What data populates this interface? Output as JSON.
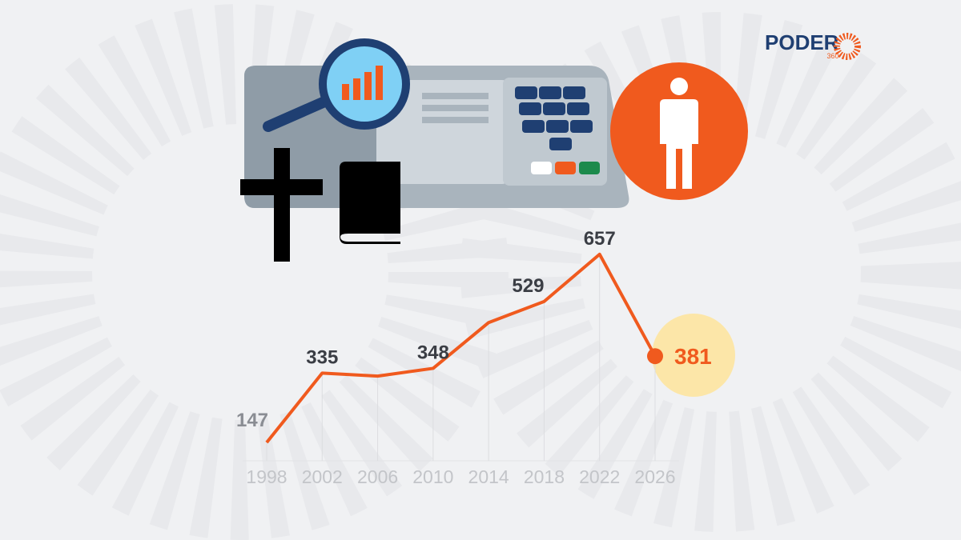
{
  "logo": {
    "name": "PODER",
    "sub": "360"
  },
  "chart_data": {
    "type": "line",
    "x": [
      1998,
      2002,
      2006,
      2010,
      2014,
      2018,
      2022,
      2026
    ],
    "values": [
      147,
      335,
      327,
      348,
      472,
      529,
      657,
      381
    ],
    "value_labels": [
      "147",
      "335",
      null,
      "348",
      null,
      "529",
      "657",
      "381"
    ],
    "color": "#f05a1e",
    "xlim": [
      1998,
      2026
    ],
    "xticks": [
      1998,
      2002,
      2006,
      2010,
      2014,
      2018,
      2022,
      2026
    ],
    "ylim": [
      0,
      700
    ]
  }
}
